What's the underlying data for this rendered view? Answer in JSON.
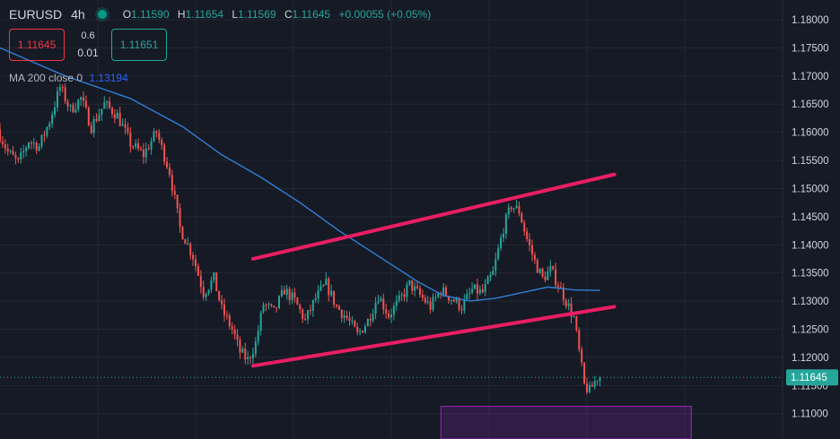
{
  "header": {
    "symbol": "EURUSD",
    "timeframe": "4h",
    "open_label": "O",
    "open": "1.11590",
    "high_label": "H",
    "high": "1.11654",
    "low_label": "L",
    "low": "1.11569",
    "close_label": "C",
    "close": "1.11645",
    "change": "+0.00055 (+0.05%)"
  },
  "trade": {
    "sell_price": "1.11645",
    "spread_top": "0.6",
    "spread_bottom": "0.01",
    "buy_price": "1.11651"
  },
  "indicator": {
    "label": "MA 200 close 0",
    "value": "1.13194"
  },
  "colors": {
    "background": "#161a25",
    "up": "#26a69a",
    "down": "#ef5350",
    "ma": "#2f7fd6",
    "trendline": "#e91e63",
    "zone_fill": "rgba(123,31,162,0.28)",
    "zone_border": "#9c27b0",
    "grid": "#232733",
    "axis_text": "#d1d4dc"
  },
  "chart_data": {
    "type": "candlestick",
    "symbol": "EURUSD",
    "interval": "4h",
    "ylim": [
      1.1055,
      1.1835
    ],
    "y_ticks": [
      "1.18000",
      "1.17500",
      "1.17000",
      "1.16500",
      "1.16000",
      "1.15500",
      "1.15000",
      "1.14500",
      "1.14000",
      "1.13500",
      "1.13000",
      "1.12500",
      "1.12000",
      "1.11500",
      "1.11000"
    ],
    "last_price": "1.11645",
    "last_price_value": 1.11645,
    "n_bars": 240,
    "price_path": [
      [
        0,
        1.1605
      ],
      [
        8,
        1.1565
      ],
      [
        16,
        1.1545
      ],
      [
        24,
        1.1585
      ],
      [
        32,
        1.1575
      ],
      [
        40,
        1.162
      ],
      [
        48,
        1.168
      ],
      [
        56,
        1.164
      ],
      [
        64,
        1.166
      ],
      [
        72,
        1.161
      ],
      [
        82,
        1.165
      ],
      [
        92,
        1.163
      ],
      [
        102,
        1.158
      ],
      [
        112,
        1.156
      ],
      [
        122,
        1.16
      ],
      [
        132,
        1.153
      ],
      [
        140,
        1.143
      ],
      [
        150,
        1.138
      ],
      [
        158,
        1.1315
      ],
      [
        166,
        1.134
      ],
      [
        172,
        1.1285
      ],
      [
        180,
        1.125
      ],
      [
        186,
        1.121
      ],
      [
        192,
        1.1195
      ],
      [
        198,
        1.1225
      ],
      [
        204,
        1.1295
      ],
      [
        212,
        1.128
      ],
      [
        220,
        1.132
      ],
      [
        228,
        1.13
      ],
      [
        236,
        1.1265
      ],
      [
        244,
        1.1305
      ],
      [
        252,
        1.133
      ],
      [
        260,
        1.129
      ],
      [
        268,
        1.127
      ],
      [
        276,
        1.124
      ],
      [
        284,
        1.1265
      ],
      [
        292,
        1.131
      ],
      [
        300,
        1.1275
      ],
      [
        308,
        1.13
      ],
      [
        316,
        1.133
      ],
      [
        324,
        1.131
      ],
      [
        332,
        1.129
      ],
      [
        340,
        1.132
      ],
      [
        348,
        1.1305
      ],
      [
        356,
        1.129
      ],
      [
        364,
        1.132
      ],
      [
        372,
        1.1315
      ],
      [
        380,
        1.135
      ],
      [
        388,
        1.143
      ],
      [
        394,
        1.147
      ],
      [
        400,
        1.146
      ],
      [
        406,
        1.141
      ],
      [
        412,
        1.137
      ],
      [
        418,
        1.134
      ],
      [
        424,
        1.1355
      ],
      [
        430,
        1.133
      ],
      [
        436,
        1.13
      ],
      [
        442,
        1.127
      ],
      [
        446,
        1.121
      ],
      [
        450,
        1.115
      ],
      [
        454,
        1.114
      ],
      [
        460,
        1.1165
      ]
    ],
    "moving_average": {
      "name": "MA 200 close 0",
      "points": [
        [
          0,
          1.175
        ],
        [
          50,
          1.17
        ],
        [
          100,
          1.166
        ],
        [
          140,
          1.161
        ],
        [
          170,
          1.156
        ],
        [
          200,
          1.152
        ],
        [
          230,
          1.1475
        ],
        [
          260,
          1.1425
        ],
        [
          290,
          1.138
        ],
        [
          320,
          1.1335
        ],
        [
          340,
          1.131
        ],
        [
          360,
          1.13
        ],
        [
          380,
          1.1305
        ],
        [
          400,
          1.1315
        ],
        [
          420,
          1.1325
        ],
        [
          440,
          1.132
        ],
        [
          460,
          1.1319
        ]
      ]
    },
    "trendlines": [
      {
        "name": "channel-upper",
        "x0": 194,
        "y0": 1.1375,
        "x1": 471,
        "y1": 1.1525
      },
      {
        "name": "channel-lower",
        "x0": 194,
        "y0": 1.1185,
        "x1": 471,
        "y1": 1.129
      }
    ],
    "zones": [
      {
        "name": "demand-zone",
        "x0": 338,
        "x1": 530,
        "y_top": 1.1113,
        "y_bottom": 1.1055
      }
    ]
  }
}
